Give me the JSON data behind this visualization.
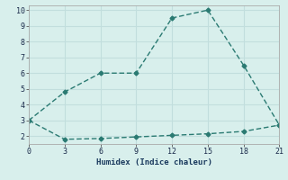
{
  "line1_x": [
    0,
    3,
    6,
    9,
    12,
    15,
    18,
    21
  ],
  "line1_y": [
    3.0,
    4.8,
    6.0,
    6.0,
    9.5,
    10.0,
    6.5,
    2.7
  ],
  "line2_x": [
    0,
    3,
    6,
    9,
    12,
    15,
    18,
    21
  ],
  "line2_y": [
    3.0,
    1.8,
    1.85,
    1.95,
    2.05,
    2.15,
    2.3,
    2.7
  ],
  "line_color": "#2a7a72",
  "bg_color": "#d8efec",
  "grid_color": "#c2dedd",
  "xlabel": "Humidex (Indice chaleur)",
  "xlim": [
    0,
    21
  ],
  "ylim": [
    1.5,
    10.3
  ],
  "xticks": [
    0,
    3,
    6,
    9,
    12,
    15,
    18,
    21
  ],
  "yticks": [
    2,
    3,
    4,
    5,
    6,
    7,
    8,
    9,
    10
  ],
  "marker": "D",
  "markersize": 2.5,
  "linewidth": 1.0,
  "linestyle": "--"
}
